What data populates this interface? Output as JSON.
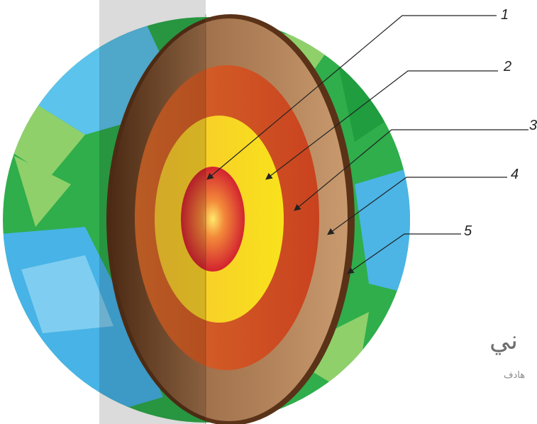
{
  "labels": [
    "1",
    "2",
    "3",
    "4",
    "5"
  ],
  "watermark": {
    "title": "ني",
    "subtitle": "هادف"
  }
}
